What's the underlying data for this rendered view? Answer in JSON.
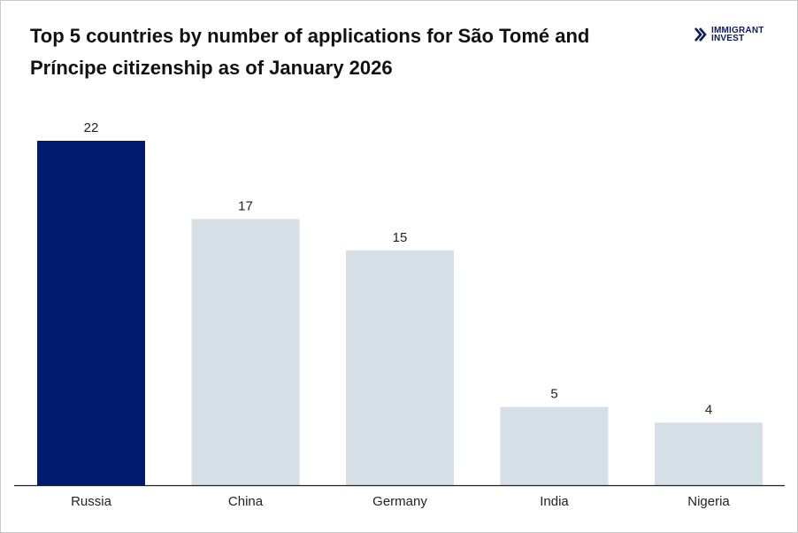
{
  "title": "Top 5 countries by number of applications for São Tomé and Príncipe citizenship as of January 2026",
  "logo": {
    "line1": "IMMIGRANT",
    "line2": "INVEST",
    "color": "#0f1a5a"
  },
  "colors": {
    "highlight": "#001a6e",
    "default": "#d5e0e6",
    "axis": "#222222"
  },
  "chart_data": {
    "type": "bar",
    "title": "Top 5 countries by number of applications for São Tomé and Príncipe citizenship as of January 2026",
    "categories": [
      "Russia",
      "China",
      "Germany",
      "India",
      "Nigeria"
    ],
    "values": [
      22,
      17,
      15,
      5,
      4
    ],
    "highlight_index": 0,
    "data_labels": true,
    "xlabel": "",
    "ylabel": "",
    "ylim": [
      0,
      22
    ],
    "grid": false,
    "legend": "none"
  }
}
